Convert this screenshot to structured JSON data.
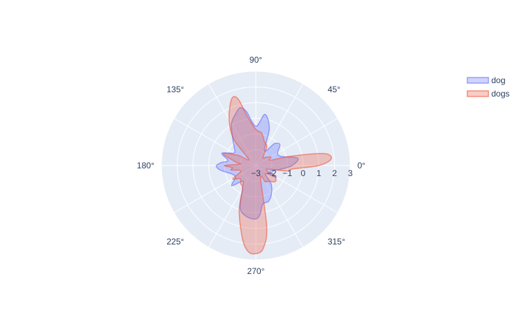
{
  "chart_data": {
    "type": "area",
    "subtype": "polar",
    "radial_axis": {
      "range": [
        -3,
        3
      ],
      "ticks": [
        "−3",
        "−2",
        "−1",
        "0",
        "1",
        "2",
        "3"
      ]
    },
    "angular_axis": {
      "ticks": [
        0,
        45,
        90,
        135,
        180,
        225,
        270,
        315
      ],
      "tick_labels": [
        "0°",
        "45°",
        "90°",
        "135°",
        "180°",
        "225°",
        "270°",
        "315°"
      ]
    },
    "grid": true,
    "legend_position": "top-right",
    "series": [
      {
        "name": "dog",
        "color": "#636efa",
        "theta": [
          0,
          10,
          20,
          30,
          40,
          45,
          50,
          60,
          70,
          80,
          90,
          100,
          105,
          110,
          120,
          130,
          140,
          150,
          160,
          170,
          175,
          180,
          185,
          190,
          200,
          210,
          220,
          230,
          240,
          250,
          260,
          270,
          275,
          280,
          290,
          300,
          310,
          320,
          330,
          340,
          350
        ],
        "r": [
          -0.7,
          -0.3,
          -1.3,
          -1.4,
          -1.0,
          -1.0,
          -1.2,
          -1.9,
          -0.5,
          0.3,
          -0.5,
          0.5,
          0.8,
          0.6,
          0.1,
          -0.7,
          -1.2,
          -1.4,
          -0.7,
          -1.2,
          -0.8,
          -0.5,
          -0.6,
          -0.9,
          -1.4,
          -1.5,
          -1.0,
          -1.7,
          -1.3,
          -0.1,
          0.3,
          0.4,
          0.1,
          -0.5,
          -0.6,
          -1.0,
          -1.5,
          -2.2,
          -1.5,
          -2.0,
          -1.5
        ]
      },
      {
        "name": "dogs",
        "color": "#ef553b",
        "theta": [
          0,
          5,
          10,
          15,
          20,
          30,
          40,
          50,
          60,
          70,
          80,
          90,
          100,
          105,
          110,
          120,
          130,
          140,
          150,
          160,
          170,
          175,
          180,
          185,
          190,
          200,
          210,
          220,
          230,
          240,
          250,
          260,
          265,
          270,
          275,
          280,
          290,
          300,
          310,
          320,
          330,
          340,
          350,
          355
        ],
        "r": [
          1.0,
          1.8,
          1.4,
          -0.7,
          -2.0,
          -1.9,
          -2.2,
          -2.3,
          -1.6,
          -1.4,
          -0.9,
          -0.7,
          0.2,
          1.4,
          1.5,
          0.4,
          -0.8,
          -2.4,
          -1.7,
          -0.8,
          -1.7,
          -2.0,
          -1.0,
          -1.5,
          -1.4,
          -2.0,
          -1.3,
          -1.7,
          -1.5,
          -1.3,
          0.1,
          1.8,
          2.5,
          2.6,
          2.3,
          1.0,
          -2.1,
          -1.8,
          -1.7,
          -1.4,
          -1.6,
          -2.3,
          -1.0,
          -0.6
        ]
      }
    ]
  }
}
